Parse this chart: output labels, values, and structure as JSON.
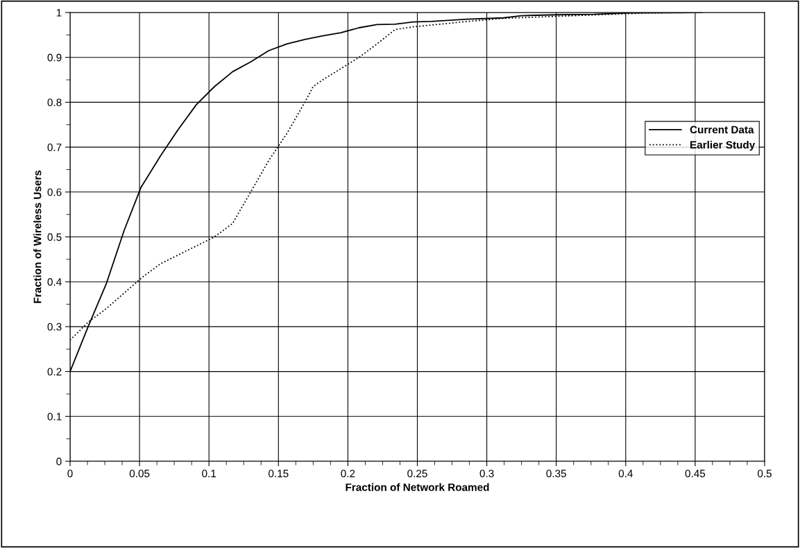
{
  "chart_data": {
    "type": "line",
    "xlabel": "Fraction of Network Roamed",
    "ylabel": "Fraction of Wireless Users",
    "xlim": [
      0,
      0.5
    ],
    "ylim": [
      0,
      1
    ],
    "xticks": [
      0,
      0.05,
      0.1,
      0.15,
      0.2,
      0.25,
      0.3,
      0.35,
      0.4,
      0.45,
      0.5
    ],
    "yticks": [
      0,
      0.1,
      0.2,
      0.3,
      0.4,
      0.5,
      0.6,
      0.7,
      0.8,
      0.9,
      1
    ],
    "grid": true,
    "legend": "right",
    "marker": "none",
    "series": [
      {
        "name": "Current Data",
        "color": "#000000",
        "line_style": "solid",
        "x": [
          0,
          0.013,
          0.026,
          0.039,
          0.051,
          0.065,
          0.078,
          0.091,
          0.104,
          0.117,
          0.13,
          0.143,
          0.156,
          0.169,
          0.182,
          0.195,
          0.208,
          0.221,
          0.234,
          0.247,
          0.26,
          0.286,
          0.312,
          0.325,
          0.351,
          0.377,
          0.403,
          0.455
        ],
        "values": [
          0.2,
          0.3,
          0.395,
          0.515,
          0.61,
          0.68,
          0.74,
          0.795,
          0.835,
          0.868,
          0.89,
          0.915,
          0.93,
          0.94,
          0.948,
          0.955,
          0.966,
          0.973,
          0.974,
          0.979,
          0.98,
          0.985,
          0.988,
          0.993,
          0.995,
          0.996,
          0.999,
          1.0
        ]
      },
      {
        "name": "Earlier Study",
        "color": "#000000",
        "line_style": "dotted",
        "x": [
          0,
          0.013,
          0.026,
          0.039,
          0.052,
          0.065,
          0.078,
          0.091,
          0.104,
          0.117,
          0.13,
          0.143,
          0.156,
          0.169,
          0.175,
          0.182,
          0.195,
          0.208,
          0.221,
          0.234,
          0.247,
          0.26,
          0.286,
          0.312,
          0.338,
          0.364,
          0.39,
          0.416,
          0.455
        ],
        "values": [
          0.27,
          0.31,
          0.34,
          0.375,
          0.41,
          0.44,
          0.46,
          0.48,
          0.5,
          0.53,
          0.6,
          0.67,
          0.73,
          0.8,
          0.835,
          0.85,
          0.875,
          0.9,
          0.93,
          0.962,
          0.968,
          0.972,
          0.98,
          0.987,
          0.99,
          0.993,
          0.996,
          0.999,
          1.0
        ]
      }
    ]
  }
}
